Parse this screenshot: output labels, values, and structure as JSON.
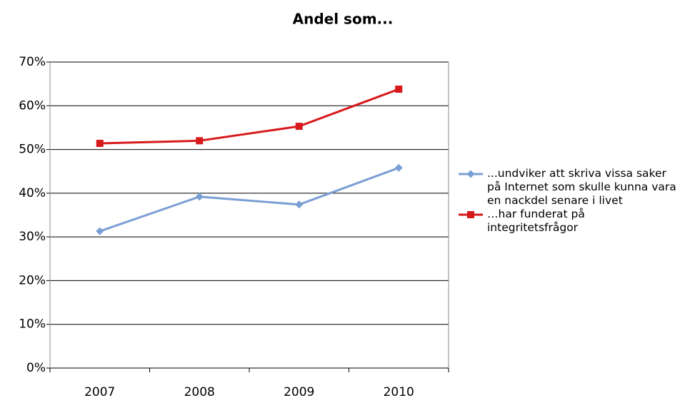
{
  "chart_data": {
    "type": "line",
    "title": "Andel som...",
    "categories": [
      "2007",
      "2008",
      "2009",
      "2010"
    ],
    "series": [
      {
        "name": "...undviker att skriva vissa saker på Internet som skulle kunna vara en nackdel senare i livet",
        "color": "#7a9fd4",
        "marker": "diamond",
        "values": [
          31.3,
          39.2,
          37.4,
          45.8
        ]
      },
      {
        "name": "…har funderat på integritetsfrågor",
        "color": "#d7191c",
        "marker": "square",
        "values": [
          51.4,
          52.0,
          55.3,
          63.8
        ]
      }
    ],
    "ylim": [
      0,
      70
    ],
    "yticks": [
      {
        "value": 0,
        "label": "0%"
      },
      {
        "value": 10,
        "label": "10%"
      },
      {
        "value": 20,
        "label": "20%"
      },
      {
        "value": 30,
        "label": "30%"
      },
      {
        "value": 40,
        "label": "40%"
      },
      {
        "value": 50,
        "label": "50%"
      },
      {
        "value": 60,
        "label": "60%"
      },
      {
        "value": 70,
        "label": "70%"
      }
    ],
    "grid": true,
    "legend": "right"
  }
}
